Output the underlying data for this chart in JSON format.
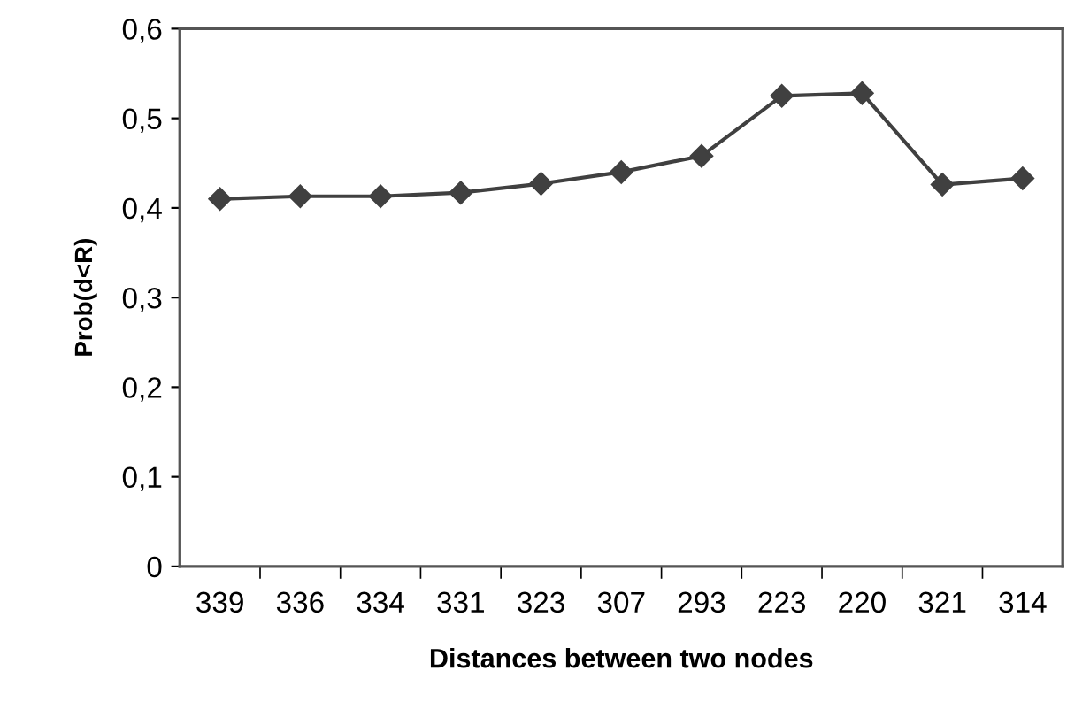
{
  "chart_data": {
    "type": "line",
    "xlabel": "Distances between two nodes",
    "ylabel": "Prob(d<R)",
    "categories": [
      "339",
      "336",
      "334",
      "331",
      "323",
      "307",
      "293",
      "223",
      "220",
      "321",
      "314"
    ],
    "series": [
      {
        "color": "#404040",
        "values": [
          0.41,
          0.413,
          0.413,
          0.417,
          0.427,
          0.44,
          0.458,
          0.525,
          0.528,
          0.426,
          0.433
        ]
      }
    ],
    "ylim": [
      0,
      0.6
    ],
    "yticks": [
      {
        "value": 0,
        "label": "0"
      },
      {
        "value": 0.1,
        "label": "0,1"
      },
      {
        "value": 0.2,
        "label": "0,2"
      },
      {
        "value": 0.3,
        "label": "0,3"
      },
      {
        "value": 0.4,
        "label": "0,4"
      },
      {
        "value": 0.5,
        "label": "0,5"
      },
      {
        "value": 0.6,
        "label": "0,6"
      }
    ],
    "marker": "diamond",
    "line_style": "solid",
    "grid": false,
    "legend": false
  }
}
